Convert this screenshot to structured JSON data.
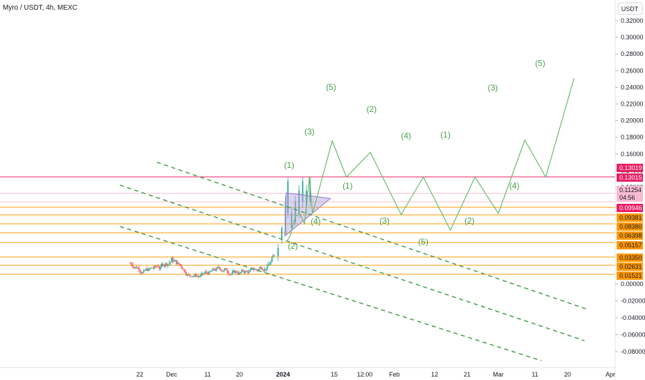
{
  "header": {
    "title": "Myro / USDT, 4h, MEXC",
    "currency_button": "USDT"
  },
  "chart_data": {
    "type": "line",
    "title": "Myro / USDT, 4h, MEXC",
    "ylim": [
      -0.09,
      0.33
    ],
    "y_ticks": [
      "0.32000",
      "0.30000",
      "0.28000",
      "0.26000",
      "0.24000",
      "0.22000",
      "0.20000",
      "0.18000",
      "0.16000",
      "0.14000",
      "0.12000",
      "0.10000",
      "0.00000",
      "-0.02000",
      "-0.04000",
      "-0.06000",
      "-0.08000"
    ],
    "x_ticks": [
      "22",
      "Dec",
      "11",
      "20",
      "2024",
      "15",
      "12:00",
      "Feb",
      "12",
      "21",
      "Mar",
      "11",
      "20",
      "Apr"
    ],
    "price_tags": [
      {
        "value": "0.13019",
        "color": "#e91e63",
        "y": 0.13019
      },
      {
        "value": "0.13015",
        "color": "#e91e63",
        "y": 0.13015
      },
      {
        "value": "0.11254",
        "color": "#f8bbd0",
        "y": 0.11254,
        "text_color": "#131722"
      },
      {
        "value": "04:56",
        "color": "#f8bbd0",
        "y": 0.106,
        "text_color": "#131722"
      },
      {
        "value": "0.09946",
        "color": "#e91e63",
        "y": 0.09946
      },
      {
        "value": "0.09381",
        "color": "#ff9800",
        "y": 0.09381,
        "text_color": "#131722"
      },
      {
        "value": "0.08380",
        "color": "#ff9800",
        "y": 0.0838,
        "text_color": "#131722"
      },
      {
        "value": "0.06398",
        "color": "#ff9800",
        "y": 0.06398,
        "text_color": "#131722"
      },
      {
        "value": "0.05157",
        "color": "#ff9800",
        "y": 0.05157,
        "text_color": "#131722"
      },
      {
        "value": "0.03350",
        "color": "#ff9800",
        "y": 0.0335,
        "text_color": "#131722"
      },
      {
        "value": "0.02631",
        "color": "#ff9800",
        "y": 0.02631,
        "text_color": "#131722"
      },
      {
        "value": "0.01521",
        "color": "#ff9800",
        "y": 0.01521,
        "text_color": "#131722"
      }
    ],
    "horizontal_levels": [
      {
        "y": 0.1302,
        "color": "#e91e63"
      },
      {
        "y": 0.1,
        "color": "#ff9800"
      },
      {
        "y": 0.0938,
        "color": "#ff9800"
      },
      {
        "y": 0.0838,
        "color": "#ff9800"
      },
      {
        "y": 0.064,
        "color": "#ff9800"
      },
      {
        "y": 0.0516,
        "color": "#ff9800"
      },
      {
        "y": 0.0335,
        "color": "#ff9800"
      },
      {
        "y": 0.0263,
        "color": "#ff9800"
      },
      {
        "y": 0.0152,
        "color": "#ff9800"
      },
      {
        "y": 0.1125,
        "color": "#f8bbd0"
      },
      {
        "y": 0.105,
        "color": "#f8bbd0"
      }
    ],
    "channel_lines": [
      {
        "name": "upper",
        "from": [
          0.255,
          0.148
        ],
        "to": [
          0.955,
          -0.03
        ]
      },
      {
        "name": "middle",
        "from": [
          0.195,
          0.12
        ],
        "to": [
          0.95,
          -0.067
        ]
      },
      {
        "name": "lower",
        "from": [
          0.195,
          0.078
        ],
        "to": [
          0.88,
          -0.09
        ]
      }
    ],
    "projection_path": [
      [
        0.466,
        0.053
      ],
      [
        0.472,
        0.061
      ],
      [
        0.48,
        0.092
      ],
      [
        0.487,
        0.095
      ],
      [
        0.495,
        0.084
      ],
      [
        0.503,
        0.13
      ],
      [
        0.508,
        0.095
      ],
      [
        0.54,
        0.174
      ],
      [
        0.563,
        0.13
      ],
      [
        0.602,
        0.16
      ],
      [
        0.652,
        0.094
      ],
      [
        0.688,
        0.13
      ],
      [
        0.732,
        0.07
      ],
      [
        0.772,
        0.13
      ],
      [
        0.81,
        0.095
      ],
      [
        0.853,
        0.175
      ],
      [
        0.887,
        0.13
      ],
      [
        0.933,
        0.25
      ]
    ],
    "wave_labels": [
      {
        "text": "(1)",
        "x": 0.47,
        "y": 0.141
      },
      {
        "text": "(2)",
        "x": 0.476,
        "y": 0.044
      },
      {
        "text": "(3)",
        "x": 0.503,
        "y": 0.182
      },
      {
        "text": "(4)",
        "x": 0.513,
        "y": 0.083
      },
      {
        "text": "(5)",
        "x": 0.538,
        "y": 0.236
      },
      {
        "text": "(1)",
        "x": 0.565,
        "y": 0.117
      },
      {
        "text": "(2)",
        "x": 0.604,
        "y": 0.209
      },
      {
        "text": "(3)",
        "x": 0.625,
        "y": 0.084
      },
      {
        "text": "(4)",
        "x": 0.66,
        "y": 0.177
      },
      {
        "text": "(5)",
        "x": 0.688,
        "y": 0.049
      },
      {
        "text": "(1)",
        "x": 0.724,
        "y": 0.178
      },
      {
        "text": "(2)",
        "x": 0.763,
        "y": 0.084
      },
      {
        "text": "(3)",
        "x": 0.801,
        "y": 0.235
      },
      {
        "text": "(4)",
        "x": 0.836,
        "y": 0.117
      },
      {
        "text": "(5)",
        "x": 0.878,
        "y": 0.265
      }
    ],
    "triangle": [
      [
        0.463,
        0.06
      ],
      [
        0.537,
        0.108
      ],
      [
        0.465,
        0.113
      ]
    ],
    "candles_seed": 7,
    "candle_range": {
      "x_start": 0.212,
      "x_end": 0.448,
      "y_low": 0.012,
      "y_high": 0.058
    }
  }
}
